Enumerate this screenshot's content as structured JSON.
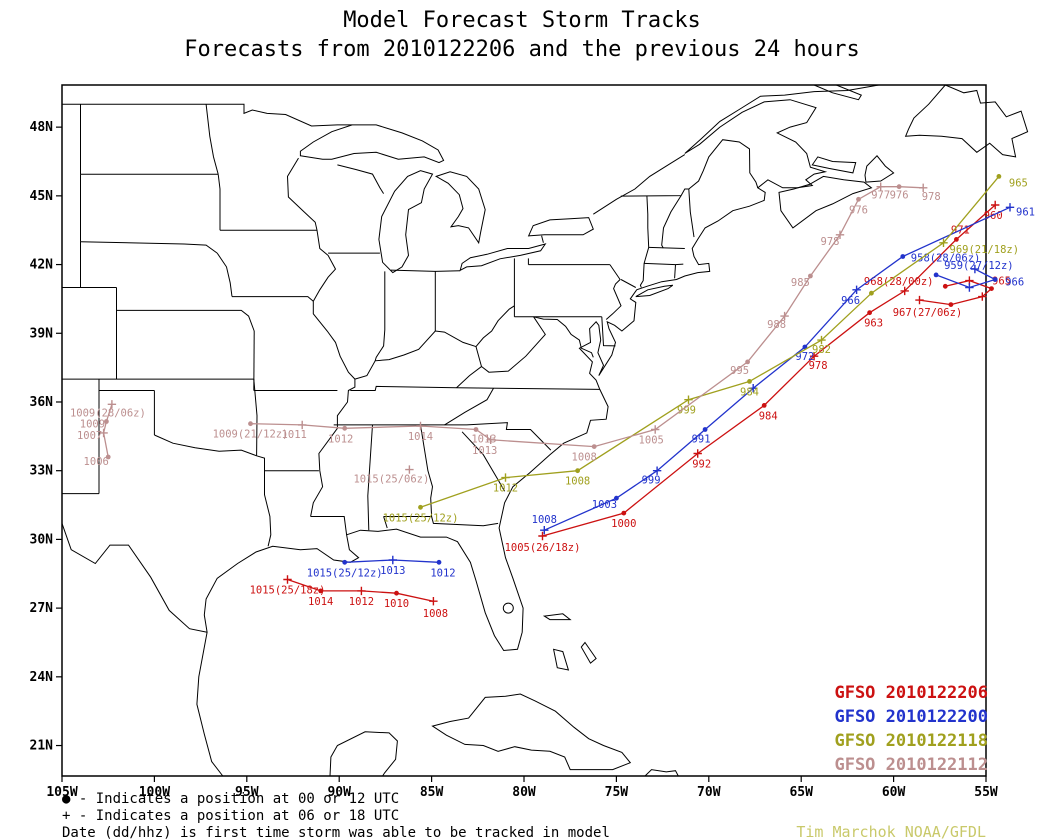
{
  "title": {
    "line1": "Model Forecast Storm Tracks",
    "line2": "Forecasts from 2010122206 and the previous 24 hours"
  },
  "colors": {
    "red": "#cc1111",
    "blue": "#2233cc",
    "olive": "#a0a01e",
    "brown": "#bc8f8f",
    "credit": "#c9c96a"
  },
  "axes": {
    "lon_ticks": [
      {
        "label": "105W",
        "value": -105
      },
      {
        "label": "100W",
        "value": -100
      },
      {
        "label": "95W",
        "value": -95
      },
      {
        "label": "90W",
        "value": -90
      },
      {
        "label": "85W",
        "value": -85
      },
      {
        "label": "80W",
        "value": -80
      },
      {
        "label": "75W",
        "value": -75
      },
      {
        "label": "70W",
        "value": -70
      },
      {
        "label": "65W",
        "value": -65
      },
      {
        "label": "60W",
        "value": -60
      },
      {
        "label": "55W",
        "value": -55
      }
    ],
    "lat_ticks": [
      {
        "label": "21N",
        "value": 21
      },
      {
        "label": "24N",
        "value": 24
      },
      {
        "label": "27N",
        "value": 27
      },
      {
        "label": "30N",
        "value": 30
      },
      {
        "label": "33N",
        "value": 33
      },
      {
        "label": "36N",
        "value": 36
      },
      {
        "label": "39N",
        "value": 39
      },
      {
        "label": "42N",
        "value": 42
      },
      {
        "label": "45N",
        "value": 45
      },
      {
        "label": "48N",
        "value": 48
      }
    ]
  },
  "legend": {
    "items": [
      {
        "label": "GFSO 2010122206",
        "color_key": "red"
      },
      {
        "label": "GFSO 2010122200",
        "color_key": "blue"
      },
      {
        "label": "GFSO 2010122118",
        "color_key": "olive"
      },
      {
        "label": "GFSO 2010122112",
        "color_key": "brown"
      }
    ]
  },
  "footnotes": {
    "line1": "● - Indicates a position at 00 or 12 UTC",
    "line2": "+ - Indicates a position at 06 or 18 UTC",
    "line3": "Date (dd/hhz) is first time storm was able to be tracked in model"
  },
  "credit": "Tim Marchok NOAA/GFDL",
  "chart_data": {
    "type": "storm-tracks-map",
    "lon_range": [
      -105,
      -55
    ],
    "lat_range": [
      19.67,
      49.84
    ],
    "marker_legend": {
      "dot": "position at 00 or 12 UTC",
      "plus": "position at 06 or 18 UTC"
    },
    "tracks": [
      {
        "model": "GFSO",
        "run": "2010122206",
        "color_key": "red",
        "segments": [
          {
            "points": [
              [
                -92.8,
                28.25,
                "p",
                "1015(25/18z)",
                0,
                14
              ],
              [
                -91.0,
                27.75,
                "d",
                "1014",
                0,
                14
              ],
              [
                -88.8,
                27.75,
                "p",
                "1012",
                0,
                14
              ],
              [
                -86.9,
                27.65,
                "d",
                "1010",
                0,
                14
              ],
              [
                -84.9,
                27.3,
                "p",
                "1008",
                2,
                16
              ]
            ]
          },
          {
            "points": [
              [
                -79.0,
                30.15,
                "p",
                "1005(26/18z)",
                0,
                15
              ],
              [
                -74.6,
                31.15,
                "d",
                "1000",
                0,
                14
              ],
              [
                -70.6,
                33.75,
                "p",
                "992",
                4,
                14
              ],
              [
                -67.0,
                35.85,
                "d",
                "984",
                4,
                14
              ],
              [
                -64.3,
                38.0,
                "p",
                "978",
                4,
                13
              ],
              [
                -61.3,
                39.9,
                "d",
                "963",
                4,
                14
              ],
              [
                -59.4,
                40.85,
                "p",
                "968(28/00z)",
                -6,
                -6
              ],
              [
                -56.6,
                43.1,
                "d",
                "971",
                4,
                -6
              ],
              [
                -54.5,
                44.6,
                "p",
                "960",
                -2,
                14
              ]
            ]
          },
          {
            "points": [
              [
                -58.6,
                40.45,
                "p",
                "967(27/06z)",
                8,
                16
              ],
              [
                -56.9,
                40.25,
                "d",
                ""
              ],
              [
                -55.2,
                40.6,
                "p",
                ""
              ],
              [
                -54.7,
                40.95,
                "d",
                "965",
                10,
                -4
              ],
              [
                -55.9,
                41.3,
                "p",
                ""
              ],
              [
                -57.2,
                41.05,
                "d",
                ""
              ]
            ]
          }
        ]
      },
      {
        "model": "GFSO",
        "run": "2010122200",
        "color_key": "blue",
        "segments": [
          {
            "points": [
              [
                -89.7,
                29.0,
                "d",
                "1015(25/12z)",
                0,
                14
              ],
              [
                -87.1,
                29.1,
                "p",
                "1013",
                0,
                14
              ],
              [
                -84.6,
                29.0,
                "d",
                "1012",
                4,
                14
              ]
            ]
          },
          {
            "points": [
              [
                -78.9,
                30.4,
                "p",
                "1008",
                0,
                -7
              ],
              [
                -75.0,
                31.8,
                "d",
                "1003",
                -12,
                10
              ],
              [
                -72.8,
                33.0,
                "p",
                "999",
                -6,
                13
              ],
              [
                -70.2,
                34.8,
                "d",
                "991",
                -4,
                13
              ],
              [
                -67.6,
                36.6,
                "p",
                ""
              ],
              [
                -64.8,
                38.4,
                "d",
                "972",
                0,
                13
              ],
              [
                -62.0,
                40.9,
                "p",
                "966",
                -6,
                14
              ],
              [
                -59.5,
                42.35,
                "d",
                "958(28/06z)",
                8,
                5,
                "start"
              ],
              [
                -53.7,
                44.5,
                "p",
                "961",
                6,
                8,
                "start"
              ]
            ]
          },
          {
            "points": [
              [
                -57.7,
                41.55,
                "d",
                "959(27/12z)",
                8,
                -6,
                "start"
              ],
              [
                -55.9,
                41.0,
                "p",
                ""
              ],
              [
                -54.5,
                41.35,
                "d",
                "966",
                10,
                6,
                "start"
              ],
              [
                -55.6,
                41.8,
                "p",
                ""
              ]
            ]
          }
        ]
      },
      {
        "model": "GFSO",
        "run": "2010122118",
        "color_key": "olive",
        "segments": [
          {
            "points": [
              [
                -85.6,
                31.4,
                "d",
                "1015(25/12z)",
                0,
                14
              ],
              [
                -81.0,
                32.7,
                "p",
                "1012",
                0,
                14
              ],
              [
                -77.1,
                33.0,
                "d",
                "1008",
                0,
                14
              ],
              [
                -71.1,
                36.1,
                "p",
                "999",
                -2,
                14
              ],
              [
                -67.8,
                36.9,
                "d",
                "984",
                0,
                14
              ],
              [
                -63.9,
                38.7,
                "p",
                "982",
                0,
                13
              ],
              [
                -61.2,
                40.75,
                "d",
                ""
              ],
              [
                -57.3,
                42.95,
                "p",
                "969(21/18z)",
                6,
                10,
                "start"
              ],
              [
                -54.3,
                45.85,
                "d",
                "965",
                10,
                10,
                "start"
              ]
            ]
          }
        ]
      },
      {
        "model": "GFSO",
        "run": "2010122112",
        "color_key": "brown",
        "segments": [
          {
            "points": [
              [
                -102.3,
                35.9,
                "p",
                "1009(28/06z)",
                -4,
                12
              ],
              [
                -102.6,
                35.15,
                "d",
                "1009",
                -14,
                6
              ],
              [
                -102.75,
                34.65,
                "p",
                "1007",
                -14,
                6
              ],
              [
                -102.5,
                33.6,
                "d",
                "1006",
                -12,
                8
              ]
            ]
          },
          {
            "points": [
              [
                -94.8,
                35.05,
                "d",
                "1009(21/12z)",
                0,
                14
              ],
              [
                -92.0,
                35.0,
                "p",
                "1011",
                -8,
                13
              ],
              [
                -89.7,
                34.85,
                "d",
                "1012",
                -4,
                14
              ],
              [
                -85.6,
                34.95,
                "p",
                "1014",
                0,
                14
              ],
              [
                -82.6,
                34.8,
                "d",
                "1013",
                8,
                13
              ],
              [
                -81.8,
                34.35,
                "p",
                "1013",
                -6,
                14
              ],
              [
                -76.2,
                34.05,
                "d",
                "1008",
                -10,
                14
              ],
              [
                -72.9,
                34.8,
                "p",
                "1005",
                -4,
                14
              ],
              [
                -67.9,
                37.75,
                "d",
                "995",
                -8,
                12
              ],
              [
                -65.9,
                39.75,
                "p",
                "988",
                -8,
                12
              ],
              [
                -64.5,
                41.5,
                "d",
                "985",
                -10,
                10
              ],
              [
                -62.9,
                43.3,
                "p",
                "978",
                -10,
                10
              ],
              [
                -61.9,
                44.85,
                "d",
                "976",
                0,
                14
              ],
              [
                -60.7,
                45.4,
                "p",
                "977",
                0,
                12
              ],
              [
                -59.7,
                45.4,
                "d",
                "976",
                0,
                12
              ],
              [
                -58.4,
                45.35,
                "p",
                "978",
                8,
                12
              ]
            ]
          },
          {
            "points": [
              [
                -86.2,
                33.05,
                "p",
                "1015(25/06z)",
                -18,
                13
              ]
            ]
          }
        ]
      }
    ]
  }
}
